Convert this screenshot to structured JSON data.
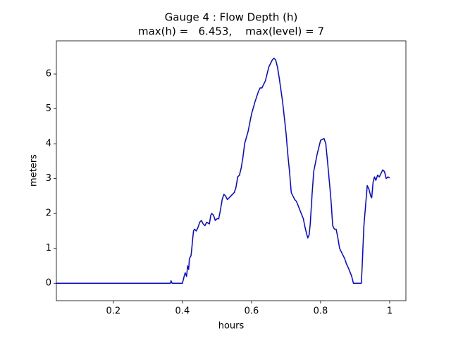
{
  "chart_data": {
    "type": "line",
    "title": [
      "Gauge 4 : Flow Depth (h)",
      "max(h) =   6.453,    max(level) = 7"
    ],
    "xlabel": "hours",
    "ylabel": "meters",
    "x": [
      0.035,
      0.365,
      0.367,
      0.37,
      0.4,
      0.405,
      0.408,
      0.412,
      0.415,
      0.418,
      0.42,
      0.425,
      0.428,
      0.432,
      0.435,
      0.44,
      0.445,
      0.45,
      0.455,
      0.46,
      0.465,
      0.47,
      0.478,
      0.482,
      0.485,
      0.49,
      0.495,
      0.5,
      0.505,
      0.51,
      0.515,
      0.52,
      0.525,
      0.53,
      0.54,
      0.55,
      0.555,
      0.56,
      0.565,
      0.57,
      0.575,
      0.58,
      0.59,
      0.6,
      0.61,
      0.62,
      0.625,
      0.63,
      0.64,
      0.65,
      0.66,
      0.665,
      0.67,
      0.675,
      0.68,
      0.69,
      0.7,
      0.705,
      0.71,
      0.715,
      0.72,
      0.725,
      0.73,
      0.74,
      0.75,
      0.755,
      0.76,
      0.763,
      0.767,
      0.77,
      0.775,
      0.78,
      0.79,
      0.8,
      0.81,
      0.815,
      0.82,
      0.83,
      0.835,
      0.84,
      0.845,
      0.85,
      0.855,
      0.86,
      0.87,
      0.875,
      0.88,
      0.89,
      0.895,
      0.918,
      0.92,
      0.925,
      0.93,
      0.935,
      0.94,
      0.945,
      0.948,
      0.952,
      0.956,
      0.96,
      0.965,
      0.97,
      0.975,
      0.98,
      0.985,
      0.99,
      0.995,
      1.0
    ],
    "series": [
      {
        "color": "#0000ff",
        "values": [
          0,
          0,
          0.07,
          0,
          0,
          0.2,
          0.3,
          0.2,
          0.5,
          0.4,
          0.7,
          0.8,
          1.1,
          1.5,
          1.55,
          1.5,
          1.6,
          1.75,
          1.8,
          1.7,
          1.65,
          1.75,
          1.7,
          1.95,
          2.0,
          1.95,
          1.8,
          1.85,
          1.85,
          2.1,
          2.4,
          2.55,
          2.5,
          2.4,
          2.5,
          2.6,
          2.75,
          3.05,
          3.1,
          3.3,
          3.6,
          4.0,
          4.35,
          4.85,
          5.2,
          5.5,
          5.6,
          5.6,
          5.8,
          6.2,
          6.4,
          6.453,
          6.4,
          6.2,
          5.9,
          5.2,
          4.3,
          3.7,
          3.2,
          2.6,
          2.5,
          2.4,
          2.35,
          2.1,
          1.85,
          1.6,
          1.4,
          1.3,
          1.4,
          1.7,
          2.5,
          3.2,
          3.7,
          4.1,
          4.15,
          4.0,
          3.5,
          2.4,
          1.65,
          1.55,
          1.55,
          1.3,
          1.0,
          0.9,
          0.7,
          0.55,
          0.45,
          0.2,
          0,
          0,
          0.4,
          1.6,
          2.2,
          2.8,
          2.7,
          2.5,
          2.45,
          2.9,
          3.05,
          2.95,
          3.1,
          3.05,
          3.15,
          3.25,
          3.2,
          3.0,
          3.05,
          3.02
        ]
      }
    ],
    "xlim": [
      0.035,
      1.047
    ],
    "ylim": [
      -0.5,
      6.95
    ],
    "xticks": [
      0.2,
      0.4,
      0.6,
      0.8,
      1.0
    ],
    "yticks": [
      0,
      1,
      2,
      3,
      4,
      5,
      6
    ]
  }
}
